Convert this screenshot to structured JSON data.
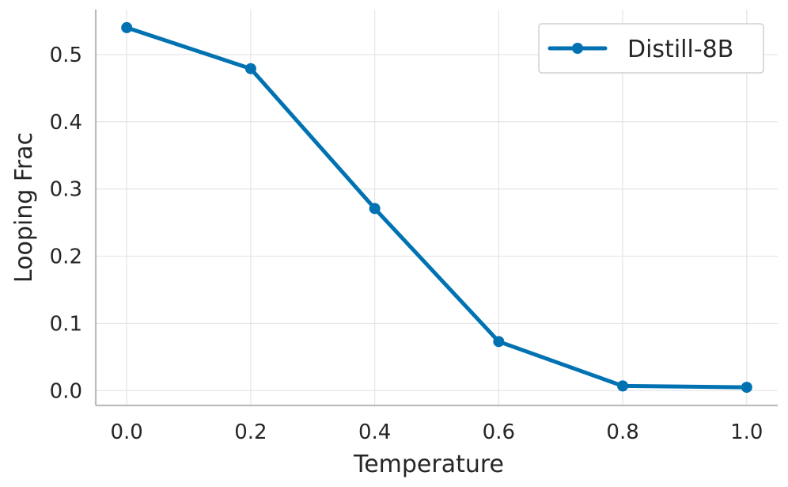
{
  "chart_data": {
    "type": "line",
    "x": [
      0.0,
      0.2,
      0.4,
      0.6,
      0.8,
      1.0
    ],
    "series": [
      {
        "name": "Distill-8B",
        "values": [
          0.54,
          0.479,
          0.271,
          0.073,
          0.007,
          0.005
        ],
        "color": "#0072b2",
        "marker": "circle"
      }
    ],
    "xlabel": "Temperature",
    "ylabel": "Looping Frac",
    "xlim": [
      -0.05,
      1.05
    ],
    "ylim": [
      -0.022,
      0.567
    ],
    "xticks": [
      "0.0",
      "0.2",
      "0.4",
      "0.6",
      "0.8",
      "1.0"
    ],
    "xtick_values": [
      0.0,
      0.2,
      0.4,
      0.6,
      0.8,
      1.0
    ],
    "yticks": [
      "0.0",
      "0.1",
      "0.2",
      "0.3",
      "0.4",
      "0.5"
    ],
    "ytick_values": [
      0.0,
      0.1,
      0.2,
      0.3,
      0.4,
      0.5
    ],
    "grid": true,
    "legend_position": "top-right"
  }
}
